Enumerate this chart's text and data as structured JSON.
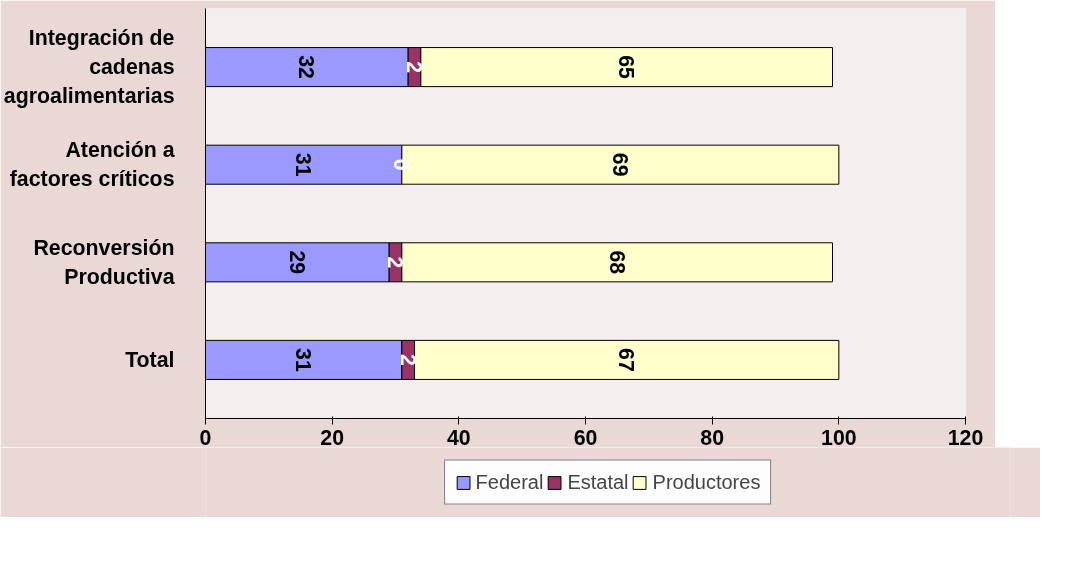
{
  "chart_data": {
    "type": "bar",
    "orientation": "horizontal",
    "stacked": true,
    "categories": [
      "Integración de cadenas agroalimentarias",
      "Atención a factores críticos",
      "Reconversión Productiva",
      "Total"
    ],
    "series": [
      {
        "name": "Federal",
        "color": "#9999ff",
        "values": [
          32,
          31,
          29,
          31
        ]
      },
      {
        "name": "Estatal",
        "color": "#993366",
        "values": [
          2,
          0,
          2,
          2
        ]
      },
      {
        "name": "Productores",
        "color": "#ffffcc",
        "values": [
          65,
          69,
          68,
          67
        ]
      }
    ],
    "xlim": [
      0,
      120
    ],
    "xticks": [
      0,
      20,
      40,
      60,
      80,
      100,
      120
    ],
    "data_labels": true,
    "grid": false,
    "legend": "bottom"
  }
}
